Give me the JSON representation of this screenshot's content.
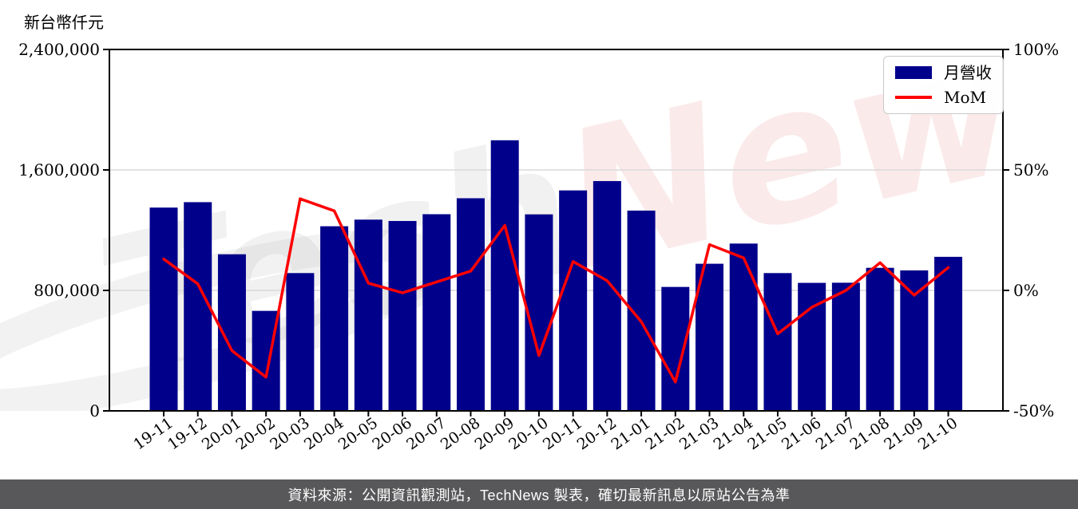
{
  "title": "新台幣仟元",
  "legend": {
    "bar_label": "月營收",
    "line_label": "MoM"
  },
  "footer": {
    "text": "資料來源：公開資訊觀測站，TechNews 製表，確切最新訊息以原站公告為準"
  },
  "watermark": {
    "part1": "Tech",
    "part2": "News"
  },
  "colors": {
    "bar": "#00008B",
    "line": "#FF0000",
    "grid": "#D9D9D9",
    "spine": "#000000",
    "footer_bg": "#58585A",
    "watermark_gray": "#828282",
    "watermark_red": "#E23C3C"
  },
  "chart_data": {
    "type": "bar",
    "title": "新台幣仟元",
    "categories": [
      "19-11",
      "19-12",
      "20-01",
      "20-02",
      "20-03",
      "20-04",
      "20-05",
      "20-06",
      "20-07",
      "20-08",
      "20-09",
      "20-10",
      "20-11",
      "20-12",
      "21-01",
      "21-02",
      "21-03",
      "21-04",
      "21-05",
      "21-06",
      "21-07",
      "21-08",
      "21-09",
      "21-10"
    ],
    "series": [
      {
        "name": "月營收",
        "type": "bar",
        "axis": "left",
        "values": [
          1350000,
          1386000,
          1040000,
          664000,
          915000,
          1226000,
          1270000,
          1261000,
          1306000,
          1412000,
          1797000,
          1305000,
          1464000,
          1526000,
          1330000,
          823000,
          977000,
          1111000,
          915000,
          850000,
          851000,
          950000,
          933000,
          1023000
        ]
      },
      {
        "name": "MoM",
        "type": "line",
        "axis": "right",
        "values": [
          13,
          2.7,
          -25,
          -36,
          38,
          33,
          3,
          -1,
          3.5,
          8,
          27,
          -27,
          12,
          4,
          -13,
          -38,
          19,
          13.5,
          -18,
          -7,
          0,
          11.5,
          -2,
          9.5
        ]
      }
    ],
    "left_axis": {
      "label": "新台幣仟元",
      "range": [
        0,
        2400000
      ],
      "ticks": [
        0,
        800000,
        1600000,
        2400000
      ],
      "tick_labels": [
        "0",
        "800,000",
        "1,600,000",
        "2,400,000"
      ]
    },
    "right_axis": {
      "unit": "%",
      "range": [
        -50,
        100
      ],
      "ticks": [
        -50,
        0,
        50,
        100
      ],
      "tick_labels": [
        "-50%",
        "0%",
        "50%",
        "100%"
      ]
    },
    "grid": true,
    "legend_position": "top-right"
  }
}
